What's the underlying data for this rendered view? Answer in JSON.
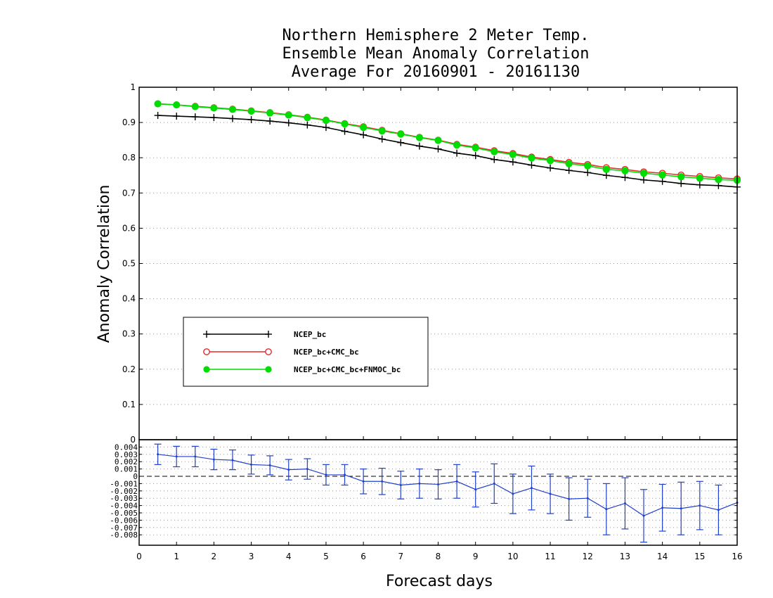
{
  "title_lines": [
    "Northern Hemisphere 2 Meter Temp.",
    "Ensemble Mean Anomaly Correlation",
    "Average For 20160901 - 20161130"
  ],
  "chart_data": [
    {
      "type": "line",
      "ylabel": "Anomaly Correlation",
      "ylim": [
        0,
        1
      ],
      "yticks": [
        "0",
        "0.1",
        "0.2",
        "0.3",
        "0.4",
        "0.5",
        "0.6",
        "0.7",
        "0.8",
        "0.9",
        "1"
      ],
      "xlim": [
        0,
        16
      ],
      "grid": true,
      "legend_position": "middle-left",
      "x": [
        0.5,
        1,
        1.5,
        2,
        2.5,
        3,
        3.5,
        4,
        4.5,
        5,
        5.5,
        6,
        6.5,
        7,
        7.5,
        8,
        8.5,
        9,
        9.5,
        10,
        10.5,
        11,
        11.5,
        12,
        12.5,
        13,
        13.5,
        14,
        14.5,
        15,
        15.5,
        16
      ],
      "series": [
        {
          "name": "NCEP_bc",
          "color": "#000000",
          "marker": "plus",
          "values": [
            0.92,
            0.918,
            0.916,
            0.914,
            0.911,
            0.908,
            0.904,
            0.899,
            0.893,
            0.886,
            0.875,
            0.865,
            0.853,
            0.843,
            0.833,
            0.825,
            0.813,
            0.806,
            0.795,
            0.788,
            0.779,
            0.771,
            0.764,
            0.758,
            0.75,
            0.744,
            0.737,
            0.733,
            0.727,
            0.723,
            0.721,
            0.717
          ]
        },
        {
          "name": "NCEP_bc+CMC_bc",
          "color": "#e8282a",
          "marker": "open-circle",
          "values": [
            0.953,
            0.95,
            0.946,
            0.942,
            0.938,
            0.933,
            0.928,
            0.922,
            0.915,
            0.907,
            0.897,
            0.888,
            0.878,
            0.868,
            0.858,
            0.85,
            0.838,
            0.83,
            0.82,
            0.812,
            0.802,
            0.795,
            0.787,
            0.781,
            0.772,
            0.767,
            0.76,
            0.756,
            0.751,
            0.747,
            0.743,
            0.74
          ]
        },
        {
          "name": "NCEP_bc+CMC_bc+FNMOC_bc",
          "color": "#00dd00",
          "marker": "filled-circle",
          "values": [
            0.953,
            0.95,
            0.945,
            0.941,
            0.937,
            0.932,
            0.927,
            0.921,
            0.914,
            0.906,
            0.896,
            0.886,
            0.876,
            0.867,
            0.857,
            0.849,
            0.836,
            0.828,
            0.817,
            0.809,
            0.799,
            0.792,
            0.783,
            0.777,
            0.767,
            0.763,
            0.756,
            0.751,
            0.746,
            0.742,
            0.738,
            0.736
          ]
        }
      ]
    },
    {
      "type": "line",
      "subtype": "difference-with-error-bars",
      "xlabel": "Forecast days",
      "xticks": [
        "0",
        "1",
        "2",
        "3",
        "4",
        "5",
        "6",
        "7",
        "8",
        "9",
        "10",
        "11",
        "12",
        "13",
        "14",
        "15",
        "16"
      ],
      "ylim": [
        -0.0085,
        0.005
      ],
      "yticks": [
        "0.004",
        "0.003",
        "0.002",
        "0.001",
        "0",
        "-0.001",
        "-0.002",
        "-0.003",
        "-0.004",
        "-0.005",
        "-0.006",
        "-0.007",
        "-0.008"
      ],
      "grid": true,
      "color": "#2040cc",
      "x": [
        0.5,
        1,
        1.5,
        2,
        2.5,
        3,
        3.5,
        4,
        4.5,
        5,
        5.5,
        6,
        6.5,
        7,
        7.5,
        8,
        8.5,
        9,
        9.5,
        10,
        10.5,
        11,
        11.5,
        12,
        12.5,
        13,
        13.5,
        14,
        14.5,
        15,
        15.5,
        16
      ],
      "values": [
        0.003,
        0.0027,
        0.0027,
        0.0023,
        0.0022,
        0.0016,
        0.0015,
        0.0009,
        0.001,
        0.0002,
        0.0002,
        -0.0007,
        -0.0007,
        -0.0012,
        -0.001,
        -0.0011,
        -0.0007,
        -0.0018,
        -0.001,
        -0.0024,
        -0.0016,
        -0.0024,
        -0.0031,
        -0.003,
        -0.0045,
        -0.0037,
        -0.0054,
        -0.0043,
        -0.0044,
        -0.004,
        -0.0046,
        -0.0036
      ],
      "lower": [
        0.0016,
        0.0013,
        0.0013,
        0.0009,
        0.0009,
        0.0003,
        0.0002,
        -0.0005,
        -0.0004,
        -0.0012,
        -0.0012,
        -0.0024,
        -0.0025,
        -0.0031,
        -0.003,
        -0.0031,
        -0.003,
        -0.0042,
        -0.0037,
        -0.0051,
        -0.0046,
        -0.0051,
        -0.006,
        -0.0056,
        -0.008,
        -0.0072,
        -0.009,
        -0.0075,
        -0.008,
        -0.0073,
        -0.008,
        -0.0036
      ],
      "upper": [
        0.0044,
        0.0041,
        0.0041,
        0.0037,
        0.0036,
        0.0029,
        0.0028,
        0.0023,
        0.0024,
        0.0016,
        0.0016,
        0.001,
        0.0011,
        0.0007,
        0.001,
        0.0009,
        0.0016,
        0.0006,
        0.0017,
        0.0003,
        0.0014,
        0.0003,
        -0.0002,
        -0.0004,
        -0.001,
        -0.0002,
        -0.0018,
        -0.0011,
        -0.0008,
        -0.0007,
        -0.0012,
        -0.0036
      ]
    }
  ]
}
